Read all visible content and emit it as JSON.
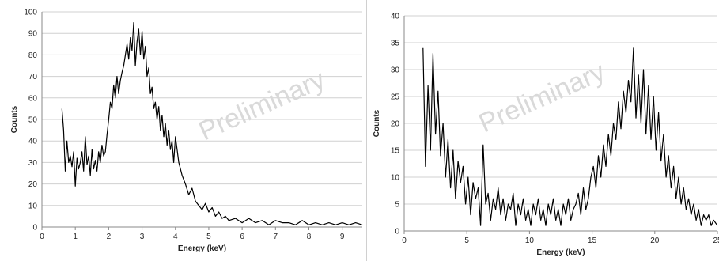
{
  "chart_data": [
    {
      "type": "line",
      "xlabel": "Energy (keV)",
      "ylabel": "Counts",
      "watermark": "Preliminary",
      "xlim": [
        0,
        9.6
      ],
      "ylim": [
        0,
        100
      ],
      "xticks": [
        0,
        1,
        2,
        3,
        4,
        5,
        6,
        7,
        8,
        9
      ],
      "yticks": [
        0,
        10,
        20,
        30,
        40,
        50,
        60,
        70,
        80,
        90,
        100
      ],
      "grid": "horizontal",
      "line_color": "#000000",
      "series": [
        {
          "x": [
            0.6,
            0.65,
            0.7,
            0.75,
            0.8,
            0.85,
            0.9,
            0.95,
            1.0,
            1.05,
            1.1,
            1.15,
            1.2,
            1.25,
            1.3,
            1.35,
            1.4,
            1.45,
            1.5,
            1.55,
            1.6,
            1.65,
            1.7,
            1.75,
            1.8,
            1.85,
            1.9,
            1.95,
            2.0,
            2.05,
            2.1,
            2.15,
            2.2,
            2.25,
            2.3,
            2.35,
            2.4,
            2.45,
            2.5,
            2.55,
            2.6,
            2.65,
            2.7,
            2.75,
            2.8,
            2.85,
            2.9,
            2.95,
            3.0,
            3.05,
            3.1,
            3.15,
            3.2,
            3.25,
            3.3,
            3.35,
            3.4,
            3.45,
            3.5,
            3.55,
            3.6,
            3.65,
            3.7,
            3.75,
            3.8,
            3.85,
            3.9,
            3.95,
            4.0,
            4.1,
            4.2,
            4.3,
            4.4,
            4.5,
            4.6,
            4.7,
            4.8,
            4.9,
            5.0,
            5.1,
            5.2,
            5.3,
            5.4,
            5.5,
            5.6,
            5.8,
            6.0,
            6.2,
            6.4,
            6.6,
            6.8,
            7.0,
            7.2,
            7.4,
            7.6,
            7.8,
            8.0,
            8.2,
            8.4,
            8.6,
            8.8,
            9.0,
            9.2,
            9.4,
            9.6
          ],
          "y": [
            55,
            45,
            26,
            40,
            30,
            33,
            28,
            35,
            19,
            32,
            27,
            30,
            35,
            26,
            42,
            29,
            33,
            24,
            36,
            27,
            31,
            26,
            35,
            30,
            38,
            33,
            35,
            43,
            50,
            58,
            55,
            66,
            60,
            70,
            62,
            68,
            72,
            75,
            80,
            85,
            78,
            88,
            82,
            95,
            75,
            86,
            92,
            80,
            91,
            78,
            84,
            70,
            74,
            62,
            65,
            55,
            58,
            50,
            56,
            45,
            52,
            42,
            48,
            38,
            45,
            36,
            40,
            30,
            42,
            30,
            24,
            20,
            15,
            18,
            12,
            10,
            8,
            11,
            7,
            9,
            5,
            7,
            4,
            5,
            3,
            4,
            2,
            4,
            2,
            3,
            1,
            3,
            2,
            2,
            1,
            3,
            1,
            2,
            1,
            2,
            1,
            2,
            1,
            2,
            1
          ]
        }
      ]
    },
    {
      "type": "line",
      "xlabel": "Energy (keV)",
      "ylabel": "Counts",
      "watermark": "Preliminary",
      "xlim": [
        0,
        25
      ],
      "ylim": [
        0,
        40
      ],
      "xticks": [
        0,
        5,
        10,
        15,
        20,
        25
      ],
      "yticks": [
        0,
        5,
        10,
        15,
        20,
        25,
        30,
        35,
        40
      ],
      "grid": "horizontal",
      "line_color": "#000000",
      "series": [
        {
          "x": [
            1.5,
            1.7,
            1.9,
            2.1,
            2.3,
            2.5,
            2.7,
            2.9,
            3.1,
            3.3,
            3.5,
            3.7,
            3.9,
            4.1,
            4.3,
            4.5,
            4.7,
            4.9,
            5.1,
            5.3,
            5.5,
            5.7,
            5.9,
            6.1,
            6.3,
            6.5,
            6.7,
            6.9,
            7.1,
            7.3,
            7.5,
            7.7,
            7.9,
            8.1,
            8.3,
            8.5,
            8.7,
            8.9,
            9.1,
            9.3,
            9.5,
            9.7,
            9.9,
            10.1,
            10.3,
            10.5,
            10.7,
            10.9,
            11.1,
            11.3,
            11.5,
            11.7,
            11.9,
            12.1,
            12.3,
            12.5,
            12.7,
            12.9,
            13.1,
            13.3,
            13.5,
            13.7,
            13.9,
            14.1,
            14.3,
            14.5,
            14.7,
            14.9,
            15.1,
            15.3,
            15.5,
            15.7,
            15.9,
            16.1,
            16.3,
            16.5,
            16.7,
            16.9,
            17.1,
            17.3,
            17.5,
            17.7,
            17.9,
            18.1,
            18.3,
            18.5,
            18.7,
            18.9,
            19.1,
            19.3,
            19.5,
            19.7,
            19.9,
            20.1,
            20.3,
            20.5,
            20.7,
            20.9,
            21.1,
            21.3,
            21.5,
            21.7,
            21.9,
            22.1,
            22.3,
            22.5,
            22.7,
            22.9,
            23.1,
            23.3,
            23.5,
            23.7,
            23.9,
            24.1,
            24.3,
            24.5,
            24.7,
            25.0
          ],
          "y": [
            34,
            12,
            27,
            15,
            33,
            18,
            26,
            14,
            20,
            10,
            17,
            8,
            15,
            6,
            13,
            9,
            12,
            5,
            10,
            3,
            9,
            6,
            8,
            1,
            16,
            5,
            7,
            2,
            6,
            4,
            8,
            3,
            6,
            2,
            5,
            4,
            7,
            1,
            5,
            3,
            6,
            2,
            4,
            1,
            5,
            3,
            6,
            2,
            4,
            1,
            5,
            3,
            6,
            2,
            4,
            1,
            5,
            3,
            6,
            2,
            4,
            5,
            7,
            3,
            8,
            4,
            6,
            10,
            12,
            8,
            14,
            10,
            16,
            12,
            18,
            14,
            20,
            17,
            24,
            19,
            26,
            22,
            28,
            24,
            34,
            21,
            29,
            20,
            30,
            18,
            27,
            17,
            25,
            15,
            22,
            13,
            18,
            10,
            14,
            8,
            12,
            6,
            10,
            5,
            8,
            4,
            6,
            3,
            5,
            2,
            4,
            1,
            3,
            2,
            3,
            1,
            2,
            1
          ]
        }
      ]
    }
  ]
}
